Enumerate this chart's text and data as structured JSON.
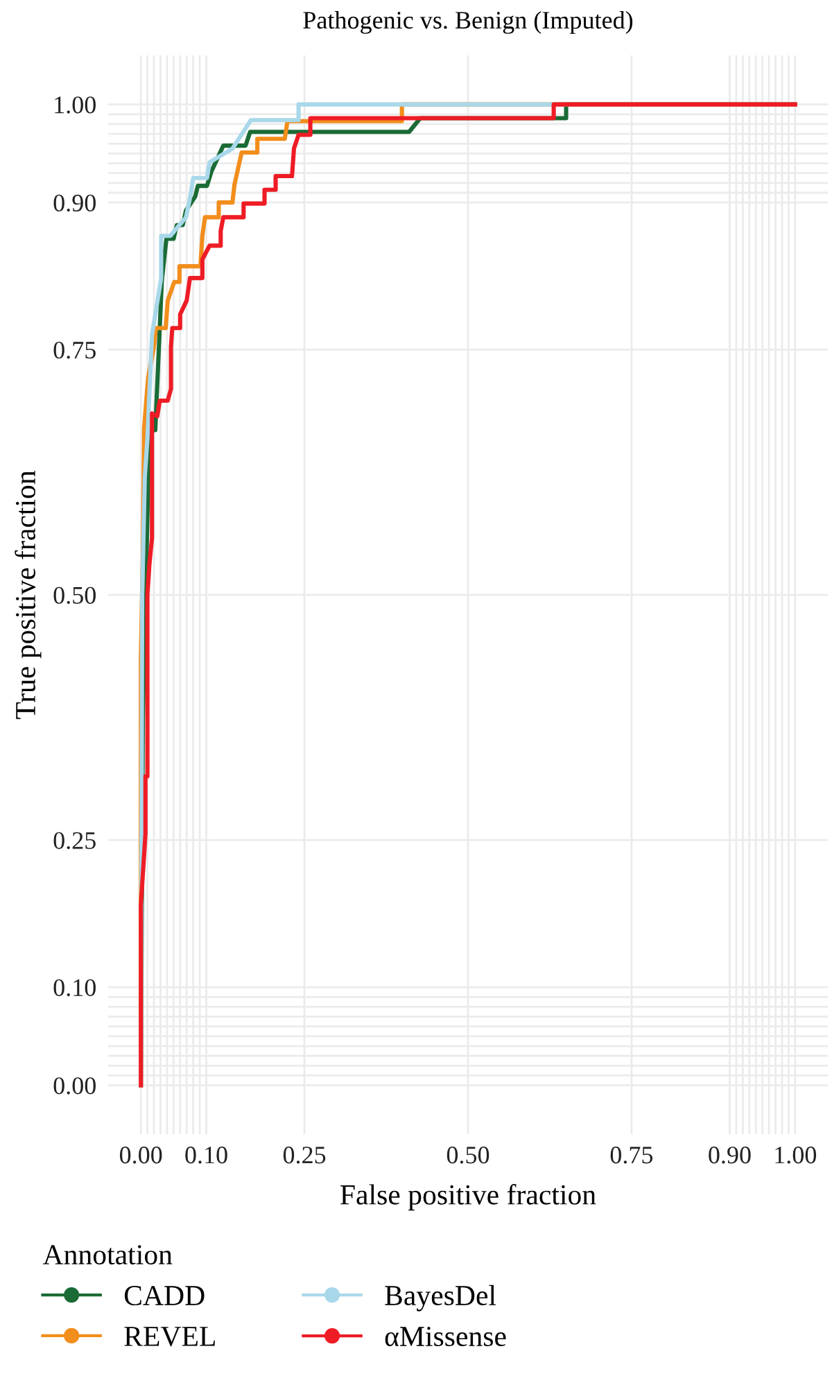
{
  "chart_data": {
    "type": "line",
    "title": "Pathogenic vs. Benign (Imputed)",
    "xlabel": "False positive fraction",
    "ylabel": "True positive fraction",
    "legend_title": "Annotation",
    "xlim": [
      -0.05,
      1.05
    ],
    "ylim": [
      -0.05,
      1.05
    ],
    "xticks": [
      "0.00",
      {
        "value": 0.01,
        "label": null
      },
      {
        "value": 0.02,
        "label": null
      },
      {
        "value": 0.03,
        "label": null
      },
      {
        "value": 0.04,
        "label": null
      },
      {
        "value": 0.05,
        "label": null
      },
      {
        "value": 0.06,
        "label": null
      },
      {
        "value": 0.07,
        "label": null
      },
      {
        "value": 0.08,
        "label": null
      },
      {
        "value": 0.09,
        "label": null
      },
      {
        "value": 0.1,
        "label": "0.10"
      },
      {
        "value": 0.25,
        "label": "0.25"
      },
      {
        "value": 0.5,
        "label": "0.50"
      },
      {
        "value": 0.75,
        "label": "0.75"
      },
      {
        "value": 0.9,
        "label": "0.90"
      },
      {
        "value": 0.91,
        "label": null
      },
      {
        "value": 0.92,
        "label": null
      },
      {
        "value": 0.93,
        "label": null
      },
      {
        "value": 0.94,
        "label": null
      },
      {
        "value": 0.95,
        "label": null
      },
      {
        "value": 0.96,
        "label": null
      },
      {
        "value": 0.97,
        "label": null
      },
      {
        "value": 0.98,
        "label": null
      },
      {
        "value": 0.99,
        "label": null
      },
      {
        "value": 1,
        "label": "1.00"
      }
    ],
    "yticks": [
      {
        "value": 0,
        "label": "0.00"
      },
      {
        "value": 0.01,
        "label": null
      },
      {
        "value": 0.02,
        "label": null
      },
      {
        "value": 0.03,
        "label": null
      },
      {
        "value": 0.04,
        "label": null
      },
      {
        "value": 0.05,
        "label": null
      },
      {
        "value": 0.06,
        "label": null
      },
      {
        "value": 0.07,
        "label": null
      },
      {
        "value": 0.08,
        "label": null
      },
      {
        "value": 0.09,
        "label": null
      },
      {
        "value": 0.1,
        "label": "0.10"
      },
      {
        "value": 0.25,
        "label": "0.25"
      },
      {
        "value": 0.5,
        "label": "0.50"
      },
      {
        "value": 0.75,
        "label": "0.75"
      },
      {
        "value": 0.9,
        "label": "0.90"
      },
      {
        "value": 0.91,
        "label": null
      },
      {
        "value": 0.92,
        "label": null
      },
      {
        "value": 0.93,
        "label": null
      },
      {
        "value": 0.94,
        "label": null
      },
      {
        "value": 0.95,
        "label": null
      },
      {
        "value": 0.96,
        "label": null
      },
      {
        "value": 0.97,
        "label": null
      },
      {
        "value": 0.98,
        "label": null
      },
      {
        "value": 0.99,
        "label": null
      },
      {
        "value": 1,
        "label": "1.00"
      }
    ],
    "grid": true,
    "legend": "bottom",
    "series": [
      {
        "name": "CADD",
        "color": "#1a6b35",
        "x": [
          0,
          0.003,
          0.013,
          0.022,
          0.032,
          0.039,
          0.05,
          0.055,
          0.064,
          0.069,
          0.083,
          0.087,
          0.101,
          0.108,
          0.126,
          0.16,
          0.167,
          0.41,
          0.427,
          0.65,
          0.65,
          1
        ],
        "values": [
          0,
          0.373,
          0.668,
          0.668,
          0.82,
          0.863,
          0.863,
          0.877,
          0.877,
          0.892,
          0.906,
          0.917,
          0.917,
          0.932,
          0.958,
          0.958,
          0.972,
          0.972,
          0.986,
          0.986,
          1,
          1
        ]
      },
      {
        "name": "REVEL",
        "color": "#f28e1c",
        "x": [
          0,
          0,
          0.003,
          0.005,
          0.011,
          0.02,
          0.023,
          0.038,
          0.041,
          0.051,
          0.059,
          0.059,
          0.091,
          0.094,
          0.098,
          0.119,
          0.119,
          0.14,
          0.143,
          0.154,
          0.178,
          0.178,
          0.22,
          0.224,
          0.399,
          0.399,
          1
        ],
        "values": [
          0,
          0.436,
          0.539,
          0.67,
          0.721,
          0.753,
          0.772,
          0.772,
          0.8,
          0.819,
          0.819,
          0.835,
          0.835,
          0.866,
          0.885,
          0.885,
          0.9,
          0.9,
          0.918,
          0.951,
          0.951,
          0.965,
          0.965,
          0.983,
          0.983,
          1,
          1
        ]
      },
      {
        "name": "BayesDel",
        "color": "#a9d8ea",
        "x": [
          0,
          0.002,
          0.006,
          0.01,
          0.017,
          0.031,
          0.031,
          0.045,
          0.069,
          0.076,
          0.08,
          0.101,
          0.105,
          0.14,
          0.168,
          0.241,
          0.241,
          1
        ],
        "values": [
          0,
          0.5,
          0.62,
          0.659,
          0.765,
          0.823,
          0.866,
          0.866,
          0.885,
          0.908,
          0.925,
          0.925,
          0.941,
          0.955,
          0.984,
          0.984,
          1,
          1
        ]
      },
      {
        "name": "αMissense",
        "color": "#ee1c25",
        "x": [
          0,
          0,
          0.007,
          0.007,
          0.01,
          0.01,
          0.013,
          0.017,
          0.017,
          0.025,
          0.029,
          0.041,
          0.046,
          0.046,
          0.048,
          0.06,
          0.06,
          0.07,
          0.075,
          0.094,
          0.094,
          0.105,
          0.122,
          0.122,
          0.126,
          0.157,
          0.157,
          0.189,
          0.189,
          0.206,
          0.206,
          0.231,
          0.234,
          0.241,
          0.259,
          0.259,
          0.631,
          0.631,
          1
        ],
        "values": [
          0,
          0.184,
          0.256,
          0.315,
          0.315,
          0.5,
          0.531,
          0.558,
          0.685,
          0.682,
          0.698,
          0.698,
          0.71,
          0.753,
          0.772,
          0.772,
          0.786,
          0.8,
          0.823,
          0.823,
          0.842,
          0.856,
          0.856,
          0.871,
          0.885,
          0.885,
          0.899,
          0.899,
          0.913,
          0.913,
          0.927,
          0.927,
          0.955,
          0.969,
          0.969,
          0.986,
          0.986,
          1,
          1
        ]
      }
    ]
  }
}
